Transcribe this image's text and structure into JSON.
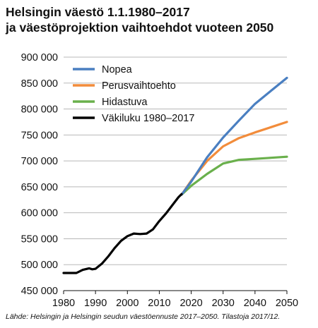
{
  "title_line1": "Helsingin väestö 1.1.1980–2017",
  "title_line2": "ja väestöprojektion vaihtoehdot vuoteen 2050",
  "source": "Lähde: Helsingin ja Helsingin seudun väestöennuste 2017–2050. Tilastoja 2017/12.",
  "chart_data": {
    "type": "line",
    "xlim": [
      1980,
      2050
    ],
    "ylim": [
      450000,
      900000
    ],
    "x_ticks": [
      1980,
      1990,
      2000,
      2010,
      2020,
      2030,
      2040,
      2050
    ],
    "y_ticks": [
      450000,
      500000,
      550000,
      600000,
      650000,
      700000,
      750000,
      800000,
      850000,
      900000
    ],
    "y_tick_labels": [
      "450 000",
      "500 000",
      "550 000",
      "600 000",
      "650 000",
      "700 000",
      "750 000",
      "800 000",
      "850 000",
      "900 000"
    ],
    "grid": "horizontal",
    "legend_position": "top-left",
    "series": [
      {
        "name": "Nopea",
        "color": "#4a7fc1",
        "x": [
          2017,
          2020,
          2025,
          2030,
          2035,
          2040,
          2045,
          2050
        ],
        "values": [
          635000,
          660000,
          707000,
          745000,
          778000,
          810000,
          835000,
          860000
        ]
      },
      {
        "name": "Perusvaihtoehto",
        "color": "#f28c3b",
        "x": [
          2017,
          2020,
          2025,
          2030,
          2035,
          2040,
          2045,
          2050
        ],
        "values": [
          635000,
          662000,
          700000,
          728000,
          744000,
          755000,
          765000,
          775000
        ]
      },
      {
        "name": "Hidastuva",
        "color": "#6ab04c",
        "x": [
          2017,
          2020,
          2025,
          2030,
          2035,
          2040,
          2045,
          2050
        ],
        "values": [
          635000,
          652000,
          675000,
          695000,
          702000,
          704000,
          706000,
          708000
        ]
      },
      {
        "name": "Väkiluku 1980–2017",
        "color": "#000000",
        "x": [
          1980,
          1982,
          1984,
          1986,
          1988,
          1989,
          1990,
          1992,
          1994,
          1996,
          1998,
          2000,
          2002,
          2004,
          2006,
          2008,
          2010,
          2012,
          2014,
          2016,
          2017
        ],
        "values": [
          484000,
          484000,
          484000,
          490000,
          493000,
          491000,
          492000,
          502000,
          516000,
          532000,
          546000,
          555000,
          560000,
          559000,
          560000,
          568000,
          584000,
          598000,
          614000,
          630000,
          636000
        ]
      }
    ]
  }
}
